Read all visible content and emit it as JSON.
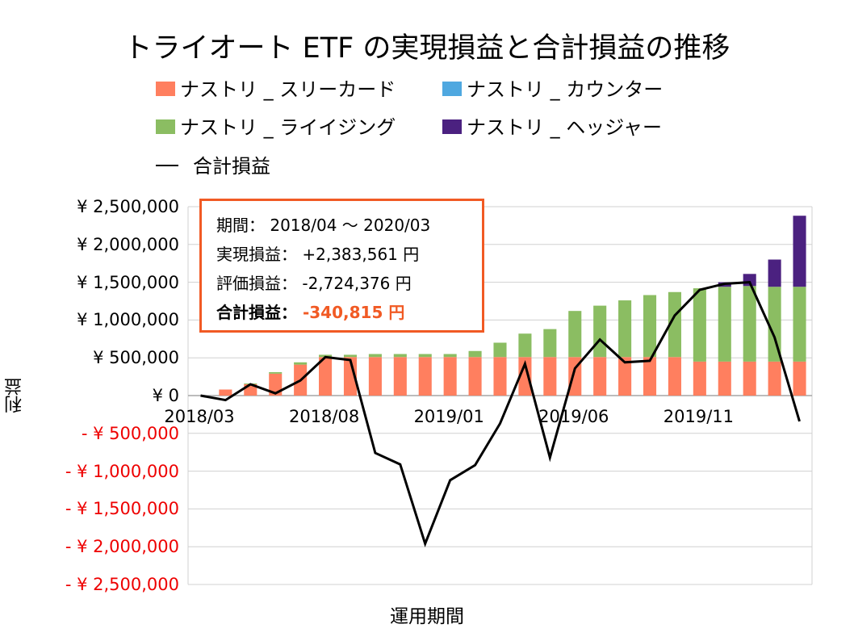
{
  "chart_data": {
    "type": "bar",
    "stacked": true,
    "title": "トライオート ETF の実現損益と合計損益の推移",
    "xlabel": "運用期間",
    "ylabel": "利益",
    "categories": [
      "2018/03",
      "2018/04",
      "2018/05",
      "2018/06",
      "2018/07",
      "2018/08",
      "2018/09",
      "2018/10",
      "2018/11",
      "2018/12",
      "2019/01",
      "2019/02",
      "2019/03",
      "2019/04",
      "2019/05",
      "2019/06",
      "2019/07",
      "2019/08",
      "2019/09",
      "2019/10",
      "2019/11",
      "2019/12",
      "2020/01",
      "2020/02",
      "2020/03"
    ],
    "x_tick_labels": [
      "2018/03",
      "2018/08",
      "2019/01",
      "2019/06",
      "2019/11"
    ],
    "x_tick_indices": [
      0,
      5,
      10,
      15,
      20
    ],
    "ylim": [
      -2500000,
      2500000
    ],
    "y_ticks": [
      2500000,
      2000000,
      1500000,
      1000000,
      500000,
      0,
      -500000,
      -1000000,
      -1500000,
      -2000000,
      -2500000
    ],
    "y_tick_labels": [
      "¥ 2,500,000",
      "¥ 2,000,000",
      "¥ 1,500,000",
      "¥ 1,000,000",
      "¥ 500,000",
      "¥ 0",
      "- ¥ 500,000",
      "- ¥ 1,000,000",
      "- ¥ 1,500,000",
      "- ¥ 2,000,000",
      "- ¥ 2,500,000"
    ],
    "series": [
      {
        "name": "ナストリ _ スリーカード",
        "color": "#ff7f5f",
        "values": [
          0,
          80000,
          150000,
          290000,
          410000,
          510000,
          510000,
          510000,
          510000,
          510000,
          510000,
          510000,
          510000,
          510000,
          510000,
          510000,
          510000,
          510000,
          510000,
          510000,
          450000,
          450000,
          450000,
          450000,
          450000
        ]
      },
      {
        "name": "ナストリ _ カウンター",
        "color": "#4fa8e0",
        "values": [
          0,
          0,
          0,
          0,
          0,
          0,
          0,
          0,
          0,
          0,
          0,
          0,
          0,
          0,
          0,
          0,
          0,
          0,
          0,
          0,
          0,
          0,
          0,
          0,
          0
        ]
      },
      {
        "name": "ナストリ _ ライイジング",
        "color": "#8bbd62",
        "values": [
          0,
          0,
          10000,
          20000,
          30000,
          30000,
          30000,
          40000,
          40000,
          40000,
          40000,
          80000,
          190000,
          310000,
          370000,
          610000,
          680000,
          750000,
          820000,
          860000,
          970000,
          990000,
          1000000,
          990000,
          990000
        ]
      },
      {
        "name": "ナストリ _ ヘッジャー",
        "color": "#4b2180",
        "values": [
          0,
          0,
          0,
          0,
          0,
          0,
          0,
          0,
          0,
          0,
          0,
          0,
          0,
          0,
          0,
          0,
          0,
          0,
          0,
          0,
          0,
          60000,
          160000,
          360000,
          940000
        ]
      },
      {
        "name": "合計損益",
        "type": "line",
        "color": "#000000",
        "values": [
          0,
          -60000,
          150000,
          30000,
          200000,
          510000,
          470000,
          -760000,
          -910000,
          -1960000,
          -1120000,
          -920000,
          -370000,
          420000,
          -820000,
          360000,
          740000,
          440000,
          460000,
          1060000,
          1400000,
          1480000,
          1500000,
          770000,
          -340815
        ]
      }
    ]
  },
  "legend": {
    "row1": [
      {
        "label": "ナストリ _ スリーカード",
        "color": "#ff7f5f"
      },
      {
        "label": "ナストリ _ カウンター",
        "color": "#4fa8e0"
      }
    ],
    "row2": [
      {
        "label": "ナストリ _ ライイジング",
        "color": "#8bbd62"
      },
      {
        "label": "ナストリ _ ヘッジャー",
        "color": "#4b2180"
      }
    ],
    "line_label": "合計損益"
  },
  "infobox": {
    "period_label": "期間：",
    "period_value": "2018/04 〜 2020/03",
    "realized_label": "実現損益：",
    "realized_value": "+2,383,561 円",
    "unrealized_label": "評価損益：",
    "unrealized_value": "-2,724,376 円",
    "total_label": "合計損益：",
    "total_value": "-340,815 円",
    "accent_color": "#f15a24"
  }
}
